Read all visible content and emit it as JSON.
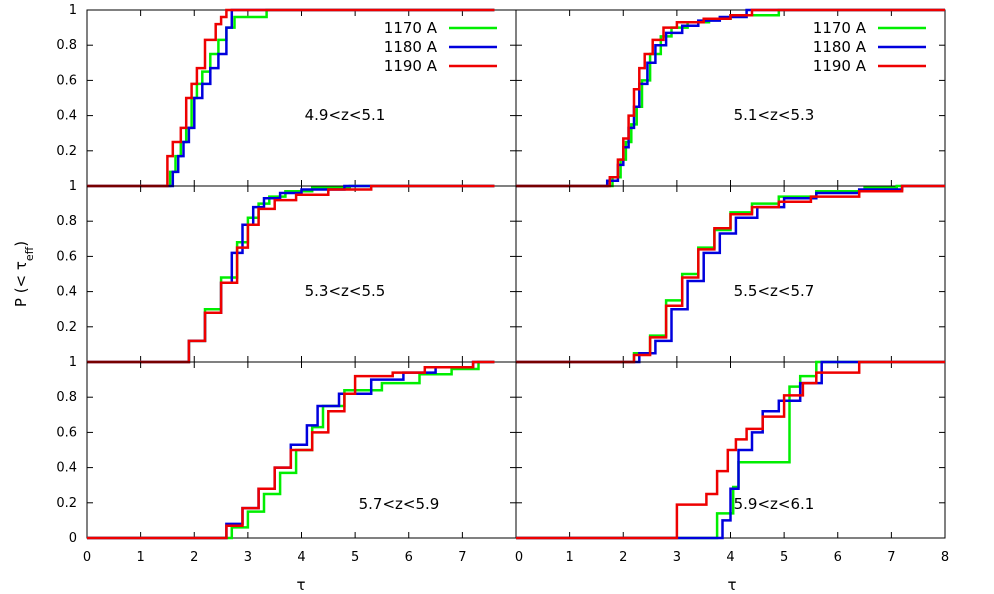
{
  "chart_data": {
    "type": "line",
    "layout": "3x2 grid of panels, shared axes",
    "xlabel": "τ",
    "ylabel": "P (< τeff)",
    "ylabel_main": "P (< τ",
    "ylabel_sub": "eff",
    "ylabel_close": ")",
    "xlim": [
      0,
      8
    ],
    "ylim": [
      0,
      1
    ],
    "xticks_left": [
      "0",
      "1",
      "2",
      "3",
      "4",
      "5",
      "6",
      "7"
    ],
    "xticks_right": [
      "0",
      "1",
      "2",
      "3",
      "4",
      "5",
      "6",
      "7",
      "8"
    ],
    "yticks_bottom": [
      "0",
      "0.2",
      "0.4",
      "0.6",
      "0.8",
      "1"
    ],
    "yticks_other": [
      "0.2",
      "0.4",
      "0.6",
      "0.8",
      "1"
    ],
    "legend_position": "top-right (top row panels)",
    "series_styles": [
      {
        "name": "1170 A",
        "color": "#00ee00"
      },
      {
        "name": "1180 A",
        "color": "#0000dd"
      },
      {
        "name": "1190 A",
        "color": "#ee0000"
      }
    ],
    "panels": [
      {
        "label": "4.9<z<5.1",
        "row": 0,
        "col": 0,
        "legend": true,
        "series": [
          {
            "name": "1170 A",
            "x": [
              0,
              1.5,
              1.55,
              1.65,
              1.75,
              1.85,
              1.95,
              2.05,
              2.15,
              2.3,
              2.45,
              2.6,
              2.75,
              3.35,
              7.6
            ],
            "y": [
              0,
              0,
              0.08,
              0.17,
              0.25,
              0.33,
              0.5,
              0.58,
              0.65,
              0.75,
              0.83,
              0.9,
              0.96,
              1,
              1
            ]
          },
          {
            "name": "1180 A",
            "x": [
              0,
              1.5,
              1.6,
              1.7,
              1.8,
              1.9,
              2.0,
              2.15,
              2.3,
              2.45,
              2.6,
              2.7,
              7.6
            ],
            "y": [
              0,
              0,
              0.08,
              0.17,
              0.25,
              0.33,
              0.5,
              0.58,
              0.67,
              0.75,
              0.9,
              1,
              1
            ]
          },
          {
            "name": "1190 A",
            "x": [
              0,
              1.45,
              1.5,
              1.6,
              1.75,
              1.85,
              1.95,
              2.05,
              2.2,
              2.4,
              2.5,
              2.6,
              7.6
            ],
            "y": [
              0,
              0,
              0.17,
              0.25,
              0.33,
              0.5,
              0.58,
              0.67,
              0.83,
              0.92,
              0.96,
              1,
              1
            ]
          }
        ]
      },
      {
        "label": "5.1<z<5.3",
        "row": 0,
        "col": 1,
        "legend": true,
        "series": [
          {
            "name": "1170 A",
            "x": [
              0,
              1.6,
              1.8,
              1.95,
              2.05,
              2.15,
              2.25,
              2.35,
              2.5,
              2.7,
              2.9,
              3.2,
              3.6,
              4.0,
              4.9,
              8
            ],
            "y": [
              0,
              0,
              0.05,
              0.15,
              0.25,
              0.35,
              0.45,
              0.6,
              0.75,
              0.85,
              0.9,
              0.93,
              0.95,
              0.97,
              1,
              1
            ]
          },
          {
            "name": "1180 A",
            "x": [
              0,
              1.5,
              1.7,
              1.9,
              2.0,
              2.1,
              2.2,
              2.3,
              2.45,
              2.6,
              2.8,
              3.1,
              3.4,
              3.8,
              4.3,
              8
            ],
            "y": [
              0,
              0,
              0.03,
              0.12,
              0.22,
              0.33,
              0.45,
              0.58,
              0.7,
              0.8,
              0.87,
              0.91,
              0.94,
              0.96,
              1,
              1
            ]
          },
          {
            "name": "1190 A",
            "x": [
              0,
              1.5,
              1.75,
              1.9,
              2.0,
              2.1,
              2.2,
              2.3,
              2.4,
              2.55,
              2.75,
              3.0,
              3.5,
              4.0,
              4.4,
              8
            ],
            "y": [
              0,
              0,
              0.05,
              0.15,
              0.27,
              0.4,
              0.55,
              0.67,
              0.75,
              0.83,
              0.9,
              0.93,
              0.95,
              0.97,
              1,
              1
            ]
          }
        ]
      },
      {
        "label": "5.3<z<5.5",
        "row": 1,
        "col": 0,
        "legend": false,
        "series": [
          {
            "name": "1170 A",
            "x": [
              0,
              1.6,
              1.9,
              2.2,
              2.5,
              2.8,
              3.0,
              3.2,
              3.4,
              3.7,
              4.2,
              4.9,
              7.6
            ],
            "y": [
              0,
              0,
              0.12,
              0.3,
              0.48,
              0.68,
              0.82,
              0.9,
              0.94,
              0.97,
              0.99,
              1,
              1
            ]
          },
          {
            "name": "1180 A",
            "x": [
              0,
              1.5,
              1.9,
              2.2,
              2.5,
              2.7,
              2.9,
              3.1,
              3.3,
              3.6,
              4.0,
              4.8,
              7.6
            ],
            "y": [
              0,
              0,
              0.12,
              0.28,
              0.45,
              0.62,
              0.78,
              0.88,
              0.93,
              0.96,
              0.98,
              1,
              1
            ]
          },
          {
            "name": "1190 A",
            "x": [
              0,
              1.6,
              1.9,
              2.2,
              2.5,
              2.8,
              3.0,
              3.2,
              3.5,
              3.9,
              4.5,
              5.3,
              7.6
            ],
            "y": [
              0,
              0,
              0.12,
              0.28,
              0.45,
              0.65,
              0.78,
              0.87,
              0.92,
              0.95,
              0.98,
              1,
              1
            ]
          }
        ]
      },
      {
        "label": "5.5<z<5.7",
        "row": 1,
        "col": 1,
        "legend": false,
        "series": [
          {
            "name": "1170 A",
            "x": [
              0,
              1.9,
              2.2,
              2.5,
              2.8,
              3.1,
              3.4,
              3.7,
              4.0,
              4.4,
              4.9,
              5.6,
              6.5,
              7.1,
              8
            ],
            "y": [
              0,
              0,
              0.05,
              0.15,
              0.35,
              0.5,
              0.65,
              0.75,
              0.85,
              0.9,
              0.94,
              0.97,
              0.99,
              1,
              1
            ]
          },
          {
            "name": "1180 A",
            "x": [
              0,
              1.9,
              2.3,
              2.6,
              2.9,
              3.2,
              3.5,
              3.8,
              4.1,
              4.5,
              5.0,
              5.6,
              6.4,
              7.2,
              8
            ],
            "y": [
              0,
              0,
              0.05,
              0.12,
              0.3,
              0.46,
              0.62,
              0.73,
              0.82,
              0.88,
              0.93,
              0.96,
              0.98,
              1,
              1
            ]
          },
          {
            "name": "1190 A",
            "x": [
              0,
              1.9,
              2.2,
              2.5,
              2.8,
              3.1,
              3.4,
              3.7,
              4.0,
              4.4,
              4.9,
              5.5,
              6.4,
              7.2,
              8
            ],
            "y": [
              0,
              0,
              0.04,
              0.14,
              0.32,
              0.48,
              0.64,
              0.76,
              0.84,
              0.88,
              0.91,
              0.94,
              0.97,
              1,
              1
            ]
          }
        ]
      },
      {
        "label": "5.7<z<5.9",
        "row": 2,
        "col": 0,
        "legend": false,
        "series": [
          {
            "name": "1170 A",
            "x": [
              0,
              2.4,
              2.7,
              3.0,
              3.3,
              3.6,
              3.9,
              4.2,
              4.4,
              4.8,
              5.5,
              6.2,
              6.8,
              7.3,
              7.6
            ],
            "y": [
              0,
              0,
              0.06,
              0.15,
              0.25,
              0.37,
              0.5,
              0.63,
              0.75,
              0.84,
              0.88,
              0.93,
              0.96,
              1,
              1
            ]
          },
          {
            "name": "1180 A",
            "x": [
              0,
              2.3,
              2.6,
              2.9,
              3.2,
              3.5,
              3.8,
              4.1,
              4.3,
              4.7,
              5.3,
              5.9,
              6.5,
              7.2,
              7.6
            ],
            "y": [
              0,
              0,
              0.08,
              0.17,
              0.28,
              0.4,
              0.53,
              0.64,
              0.75,
              0.82,
              0.9,
              0.94,
              0.97,
              1,
              1
            ]
          },
          {
            "name": "1190 A",
            "x": [
              0,
              2.25,
              2.6,
              2.9,
              3.2,
              3.5,
              3.8,
              4.2,
              4.5,
              4.8,
              5.0,
              5.7,
              6.3,
              7.2,
              7.6
            ],
            "y": [
              0,
              0,
              0.07,
              0.17,
              0.28,
              0.4,
              0.5,
              0.6,
              0.72,
              0.82,
              0.92,
              0.94,
              0.97,
              1,
              1
            ]
          }
        ]
      },
      {
        "label": "5.9<z<6.1",
        "row": 2,
        "col": 1,
        "legend": false,
        "series": [
          {
            "name": "1170 A",
            "x": [
              0,
              3.6,
              3.75,
              4.05,
              4.15,
              5.1,
              5.3,
              5.6,
              8
            ],
            "y": [
              0,
              0,
              0.14,
              0.29,
              0.43,
              0.86,
              0.92,
              1,
              1
            ]
          },
          {
            "name": "1180 A",
            "x": [
              0,
              3.7,
              3.85,
              4.0,
              4.15,
              4.4,
              4.6,
              4.9,
              5.3,
              5.7,
              8
            ],
            "y": [
              0,
              0,
              0.1,
              0.28,
              0.5,
              0.6,
              0.72,
              0.78,
              0.88,
              1,
              1
            ]
          },
          {
            "name": "1190 A",
            "x": [
              0,
              2.9,
              3.0,
              3.55,
              3.75,
              3.95,
              4.1,
              4.3,
              4.6,
              5.0,
              5.35,
              5.6,
              6.4,
              8
            ],
            "y": [
              0,
              0,
              0.19,
              0.25,
              0.38,
              0.5,
              0.56,
              0.62,
              0.69,
              0.81,
              0.88,
              0.94,
              1,
              1
            ]
          }
        ]
      }
    ]
  }
}
